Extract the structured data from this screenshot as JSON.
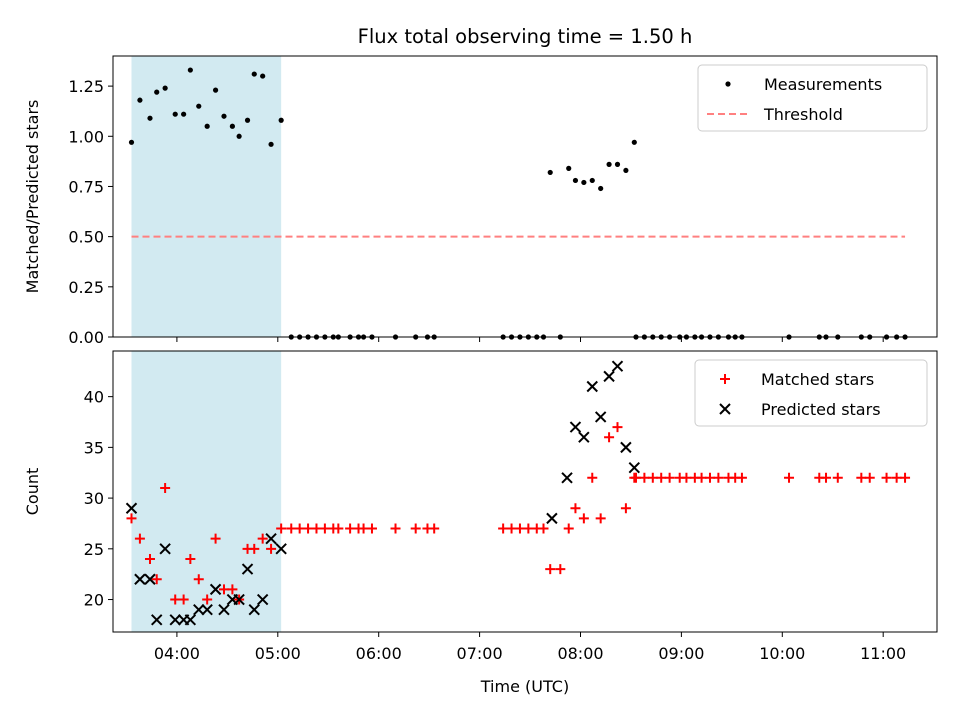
{
  "chart_data": [
    {
      "type": "scatter",
      "title": "Flux total observing time = 1.50 h",
      "xlabel": "",
      "ylabel": "Matched/Predicted stars",
      "xlim": [
        "03:22",
        "11:32"
      ],
      "ylim": [
        0,
        1.4
      ],
      "y_ticks": [
        0.0,
        0.25,
        0.5,
        0.75,
        1.0,
        1.25
      ],
      "y_tick_labels": [
        "0.00",
        "0.25",
        "0.50",
        "0.75",
        "1.00",
        "1.25"
      ],
      "shaded_interval": [
        "03:33",
        "05:02"
      ],
      "shade_color": "#add8e6",
      "legend": {
        "position": "upper right",
        "entries": [
          "Measurements",
          "Threshold"
        ]
      },
      "series": [
        {
          "name": "Measurements",
          "marker": "dot",
          "color": "#000000",
          "x": [
            "03:33",
            "03:38",
            "03:44",
            "03:48",
            "03:53",
            "03:59",
            "04:04",
            "04:08",
            "04:13",
            "04:18",
            "04:23",
            "04:28",
            "04:33",
            "04:37",
            "04:42",
            "04:46",
            "04:51",
            "04:56",
            "05:02",
            "05:08",
            "05:13",
            "05:18",
            "05:23",
            "05:28",
            "05:33",
            "05:36",
            "05:43",
            "05:48",
            "05:51",
            "05:56",
            "06:10",
            "06:22",
            "06:29",
            "06:33",
            "07:14",
            "07:19",
            "07:24",
            "07:29",
            "07:34",
            "07:38",
            "07:42",
            "07:48",
            "07:53",
            "07:57",
            "08:02",
            "08:07",
            "08:12",
            "08:17",
            "08:22",
            "08:27",
            "08:32",
            "08:33",
            "08:38",
            "08:43",
            "08:48",
            "08:53",
            "08:59",
            "09:03",
            "09:08",
            "09:12",
            "09:17",
            "09:22",
            "09:28",
            "09:32",
            "09:36",
            "10:04",
            "10:22",
            "10:26",
            "10:33",
            "10:47",
            "10:52",
            "11:02",
            "11:08",
            "11:13"
          ],
          "y": [
            0.97,
            1.18,
            1.09,
            1.22,
            1.24,
            1.11,
            1.11,
            1.33,
            1.15,
            1.05,
            1.23,
            1.1,
            1.05,
            1.0,
            1.08,
            1.31,
            1.3,
            0.96,
            1.08,
            0,
            0,
            0,
            0,
            0,
            0,
            0,
            0,
            0,
            0,
            0,
            0,
            0,
            0,
            0,
            0,
            0,
            0,
            0,
            0,
            0,
            0.82,
            0,
            0.84,
            0.78,
            0.77,
            0.78,
            0.74,
            0.86,
            0.86,
            0.83,
            0.97,
            0,
            0,
            0,
            0,
            0,
            0,
            0,
            0,
            0,
            0,
            0,
            0,
            0,
            0,
            0,
            0,
            0,
            0,
            0,
            0,
            0,
            0,
            0
          ]
        },
        {
          "name": "Threshold",
          "style": "dashed",
          "color": "#ff8080",
          "x": [
            "03:33",
            "11:13"
          ],
          "y": [
            0.5,
            0.5
          ]
        }
      ]
    },
    {
      "type": "scatter",
      "title": "",
      "xlabel": "Time (UTC)",
      "ylabel": "Count",
      "xlim": [
        "03:22",
        "11:32"
      ],
      "ylim": [
        16.8,
        44.5
      ],
      "y_ticks": [
        20,
        25,
        30,
        35,
        40
      ],
      "y_tick_labels": [
        "20",
        "25",
        "30",
        "35",
        "40"
      ],
      "x_ticks": [
        "04:00",
        "05:00",
        "06:00",
        "07:00",
        "08:00",
        "09:00",
        "10:00",
        "11:00"
      ],
      "shaded_interval": [
        "03:33",
        "05:02"
      ],
      "shade_color": "#add8e6",
      "legend": {
        "position": "upper right",
        "entries": [
          "Matched stars",
          "Predicted stars"
        ]
      },
      "series": [
        {
          "name": "Matched stars",
          "marker": "plus",
          "color": "#ff0000",
          "x": [
            "03:33",
            "03:38",
            "03:44",
            "03:48",
            "03:53",
            "03:59",
            "04:04",
            "04:08",
            "04:13",
            "04:18",
            "04:23",
            "04:28",
            "04:33",
            "04:37",
            "04:42",
            "04:46",
            "04:51",
            "04:56",
            "05:02",
            "05:08",
            "05:13",
            "05:18",
            "05:23",
            "05:28",
            "05:33",
            "05:36",
            "05:43",
            "05:48",
            "05:51",
            "05:56",
            "06:10",
            "06:22",
            "06:29",
            "06:33",
            "07:14",
            "07:19",
            "07:24",
            "07:29",
            "07:34",
            "07:38",
            "07:42",
            "07:48",
            "07:53",
            "07:57",
            "08:02",
            "08:07",
            "08:12",
            "08:17",
            "08:22",
            "08:27",
            "08:32",
            "08:33",
            "08:38",
            "08:43",
            "08:48",
            "08:53",
            "08:59",
            "09:03",
            "09:08",
            "09:12",
            "09:17",
            "09:22",
            "09:28",
            "09:32",
            "09:36",
            "10:04",
            "10:22",
            "10:26",
            "10:33",
            "10:47",
            "10:52",
            "11:02",
            "11:08",
            "11:13"
          ],
          "y": [
            28,
            26,
            24,
            22,
            31,
            20,
            20,
            24,
            22,
            20,
            26,
            21,
            21,
            20,
            25,
            25,
            26,
            25,
            27,
            27,
            27,
            27,
            27,
            27,
            27,
            27,
            27,
            27,
            27,
            27,
            27,
            27,
            27,
            27,
            27,
            27,
            27,
            27,
            27,
            27,
            23,
            23,
            27,
            29,
            28,
            32,
            28,
            36,
            37,
            29,
            32,
            32,
            32,
            32,
            32,
            32,
            32,
            32,
            32,
            32,
            32,
            32,
            32,
            32,
            32,
            32,
            32,
            32,
            32,
            32,
            32,
            32,
            32,
            32
          ]
        },
        {
          "name": "Predicted stars",
          "marker": "x",
          "color": "#000000",
          "x": [
            "03:33",
            "03:38",
            "03:44",
            "03:48",
            "03:53",
            "03:59",
            "04:04",
            "04:08",
            "04:13",
            "04:18",
            "04:23",
            "04:28",
            "04:33",
            "04:37",
            "04:42",
            "04:46",
            "04:51",
            "04:56",
            "05:02",
            "07:43",
            "07:52",
            "07:57",
            "08:02",
            "08:07",
            "08:12",
            "08:17",
            "08:22",
            "08:27",
            "08:32"
          ],
          "y": [
            29,
            22,
            22,
            18,
            25,
            18,
            18,
            18,
            19,
            19,
            21,
            19,
            20,
            20,
            23,
            19,
            20,
            26,
            25,
            28,
            32,
            37,
            36,
            41,
            38,
            42,
            43,
            35,
            33
          ]
        }
      ]
    }
  ]
}
